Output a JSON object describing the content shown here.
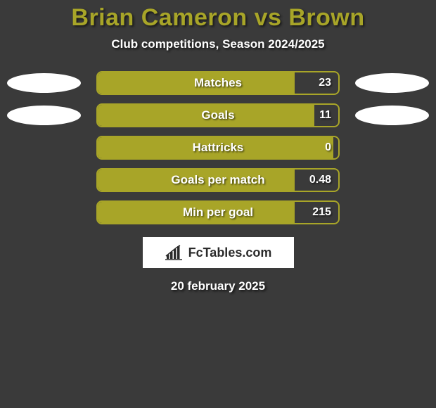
{
  "title": "Brian Cameron vs Brown",
  "subtitle": "Club competitions, Season 2024/2025",
  "date": "20 february 2025",
  "logo_text": "FcTables.com",
  "colors": {
    "accent": "#a8a528",
    "background": "#3a3a3a",
    "text": "#ffffff",
    "ellipse": "#ffffff",
    "logo_bg": "#ffffff",
    "logo_fg": "#2b2b2b"
  },
  "stats": [
    {
      "label": "Matches",
      "value": "23",
      "fill_percent": 82,
      "left_ellipse": true,
      "right_ellipse": true
    },
    {
      "label": "Goals",
      "value": "11",
      "fill_percent": 90,
      "left_ellipse": true,
      "right_ellipse": true
    },
    {
      "label": "Hattricks",
      "value": "0",
      "fill_percent": 98,
      "left_ellipse": false,
      "right_ellipse": false
    },
    {
      "label": "Goals per match",
      "value": "0.48",
      "fill_percent": 82,
      "left_ellipse": false,
      "right_ellipse": false
    },
    {
      "label": "Min per goal",
      "value": "215",
      "fill_percent": 82,
      "left_ellipse": false,
      "right_ellipse": false
    }
  ]
}
